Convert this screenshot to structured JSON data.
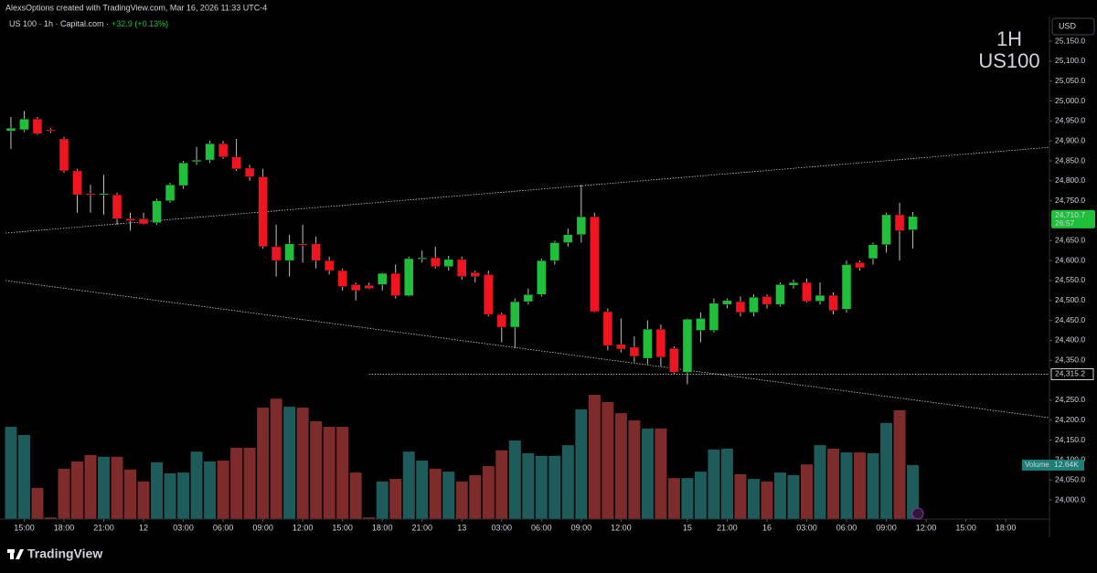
{
  "header": {
    "credit": "AlexsOptions created with TradingView.com, Mar 16, 2026 11:33 UTC-4",
    "symbol_line": "US 100 · 1h · Capital.com ·",
    "change": "+32.9 (+0.13%)"
  },
  "watermark": {
    "interval": "1H",
    "symbol": "US100"
  },
  "footer": {
    "logo": "TradingView"
  },
  "chart_data": {
    "type": "candlestick",
    "currency": "USD",
    "xlim": [
      -0.41,
      78.3
    ],
    "xticks": [
      {
        "value": 1,
        "label": "15:00"
      },
      {
        "value": 4,
        "label": "18:00"
      },
      {
        "value": 7,
        "label": "21:00"
      },
      {
        "value": 10,
        "label": "12"
      },
      {
        "value": 13,
        "label": "03:00"
      },
      {
        "value": 16,
        "label": "06:00"
      },
      {
        "value": 19,
        "label": "09:00"
      },
      {
        "value": 22,
        "label": "12:00"
      },
      {
        "value": 25,
        "label": "15:00"
      },
      {
        "value": 28,
        "label": "18:00"
      },
      {
        "value": 31,
        "label": "21:00"
      },
      {
        "value": 34,
        "label": "13"
      },
      {
        "value": 37,
        "label": "03:00"
      },
      {
        "value": 40,
        "label": "06:00"
      },
      {
        "value": 43,
        "label": "09:00"
      },
      {
        "value": 46,
        "label": "12:00"
      },
      {
        "value": 51,
        "label": "15"
      },
      {
        "value": 54,
        "label": "21:00"
      },
      {
        "value": 57,
        "label": "16"
      },
      {
        "value": 60,
        "label": "03:00"
      },
      {
        "value": 63,
        "label": "06:00"
      },
      {
        "value": 66,
        "label": "09:00"
      },
      {
        "value": 69,
        "label": "12:00"
      },
      {
        "value": 72,
        "label": "15:00"
      },
      {
        "value": 75,
        "label": "18:00"
      }
    ],
    "ylim": [
      23952,
      25212
    ],
    "yticks": [
      {
        "value": 24000,
        "label": "24,000.0"
      },
      {
        "value": 24050,
        "label": "24,050.0"
      },
      {
        "value": 24100,
        "label": "24,100.0"
      },
      {
        "value": 24150,
        "label": "24,150.0"
      },
      {
        "value": 24200,
        "label": "24,200.0"
      },
      {
        "value": 24250,
        "label": "24,250.0"
      },
      {
        "value": 24350,
        "label": "24,350.0"
      },
      {
        "value": 24400,
        "label": "24,400.0"
      },
      {
        "value": 24450,
        "label": "24,450.0"
      },
      {
        "value": 24500,
        "label": "24,500.0"
      },
      {
        "value": 24550,
        "label": "24,550.0"
      },
      {
        "value": 24600,
        "label": "24,600.0"
      },
      {
        "value": 24650,
        "label": "24,650.0"
      },
      {
        "value": 24750,
        "label": "24,750.0"
      },
      {
        "value": 24800,
        "label": "24,800.0"
      },
      {
        "value": 24850,
        "label": "24,850.0"
      },
      {
        "value": 24900,
        "label": "24,900.0"
      },
      {
        "value": 24950,
        "label": "24,950.0"
      },
      {
        "value": 25000,
        "label": "25,000.0"
      },
      {
        "value": 25050,
        "label": "25,050.0"
      },
      {
        "value": 25100,
        "label": "25,100.0"
      },
      {
        "value": 25150,
        "label": "25,150.0"
      }
    ],
    "open": [
      24925,
      24928,
      24955,
      24928,
      24905,
      24825,
      24768,
      24765,
      24765,
      24705,
      24705,
      24695,
      24750,
      24788,
      24848,
      24852,
      24893,
      24860,
      24832,
      24810,
      24635,
      24600,
      24642,
      24642,
      24600,
      24575,
      24540,
      24538,
      24540,
      24568,
      24512,
      24605,
      24607,
      24585,
      24603,
      24570,
      24565,
      24465,
      24433,
      24497,
      24515,
      24600,
      24645,
      24665,
      24710,
      24472,
      24390,
      24383,
      24355,
      24428,
      24380,
      24320,
      24425,
      24425,
      24490,
      24497,
      24470,
      24510,
      24490,
      24538,
      24545,
      24498,
      24513,
      24478,
      24595,
      24605,
      24640,
      24715,
      24677
    ],
    "high": [
      24960,
      24975,
      24960,
      24932,
      24910,
      24830,
      24790,
      24815,
      24770,
      24720,
      24720,
      24755,
      24795,
      24850,
      24885,
      24900,
      24900,
      24905,
      24840,
      24830,
      24690,
      24665,
      24690,
      24660,
      24610,
      24580,
      24545,
      24545,
      24570,
      24590,
      24610,
      24625,
      24635,
      24612,
      24610,
      24575,
      24575,
      24470,
      24505,
      24530,
      24605,
      24650,
      24680,
      24790,
      24720,
      24480,
      24455,
      24410,
      24450,
      24440,
      24385,
      24455,
      24470,
      24505,
      24505,
      24510,
      24515,
      24515,
      24545,
      24552,
      24555,
      24545,
      24520,
      24600,
      24600,
      24645,
      24720,
      24745,
      24722
    ],
    "low": [
      24880,
      24922,
      24915,
      24920,
      24820,
      24720,
      24720,
      24715,
      24690,
      24675,
      24690,
      24690,
      24745,
      24780,
      24840,
      24845,
      24855,
      24825,
      24800,
      24630,
      24560,
      24560,
      24595,
      24580,
      24565,
      24525,
      24500,
      24528,
      24525,
      24505,
      24510,
      24595,
      24580,
      24575,
      24552,
      24545,
      24460,
      24395,
      24380,
      24490,
      24510,
      24590,
      24635,
      24645,
      24470,
      24375,
      24370,
      24345,
      24340,
      24335,
      24315,
      24290,
      24395,
      24420,
      24480,
      24460,
      24460,
      24480,
      24485,
      24530,
      24495,
      24490,
      24465,
      24470,
      24575,
      24590,
      24620,
      24600,
      24630
    ],
    "close": [
      24932,
      24955,
      24918,
      24925,
      24825,
      24765,
      24765,
      24768,
      24705,
      24700,
      24692,
      24750,
      24790,
      24845,
      24852,
      24893,
      24860,
      24830,
      24810,
      24635,
      24600,
      24642,
      24640,
      24600,
      24575,
      24535,
      24525,
      24530,
      24568,
      24512,
      24605,
      24607,
      24585,
      24603,
      24560,
      24560,
      24465,
      24433,
      24497,
      24515,
      24600,
      24645,
      24665,
      24710,
      24472,
      24387,
      24378,
      24360,
      24428,
      24358,
      24320,
      24453,
      24455,
      24493,
      24500,
      24470,
      24508,
      24490,
      24540,
      24545,
      24498,
      24513,
      24475,
      24590,
      24582,
      24640,
      24715,
      24675,
      24710.7
    ],
    "up_color": "#1fbf3a",
    "down_color": "#f0141e",
    "volume": {
      "name": "Volume",
      "value_label": "12.64K",
      "values": [
        21600,
        19700,
        7300,
        400,
        11800,
        13500,
        15000,
        14600,
        14600,
        11600,
        8800,
        13300,
        10700,
        10900,
        15800,
        13500,
        13700,
        16700,
        16700,
        26100,
        28200,
        26300,
        26100,
        22900,
        21600,
        21600,
        10900,
        400,
        8800,
        9400,
        15800,
        13700,
        11800,
        11100,
        8800,
        10300,
        12400,
        16100,
        18400,
        15400,
        14800,
        14800,
        17300,
        25700,
        29100,
        27400,
        24800,
        23100,
        21200,
        21200,
        9600,
        9600,
        11100,
        16300,
        16500,
        10500,
        9400,
        8800,
        10900,
        10300,
        12800,
        17300,
        16500,
        15600,
        15600,
        15400,
        22500,
        25500,
        12640
      ],
      "ylim": [
        0,
        42800
      ],
      "up_color": "#1d5c5a",
      "down_color": "#7d2b2b",
      "label_color": "#1f7f78"
    },
    "price_line": {
      "value": 24710.7,
      "label": "24,710.7",
      "countdown": "26:57",
      "color": "#1fbf3a"
    },
    "hline": {
      "value": 24315.2,
      "label": "24,315.2",
      "x_start": 27
    },
    "trendlines": [
      {
        "x": [
          -0.41,
          78.3
        ],
        "y": [
          24669,
          24884
        ]
      },
      {
        "x": [
          -0.41,
          78.3
        ],
        "y": [
          24550,
          24206
        ]
      }
    ]
  }
}
